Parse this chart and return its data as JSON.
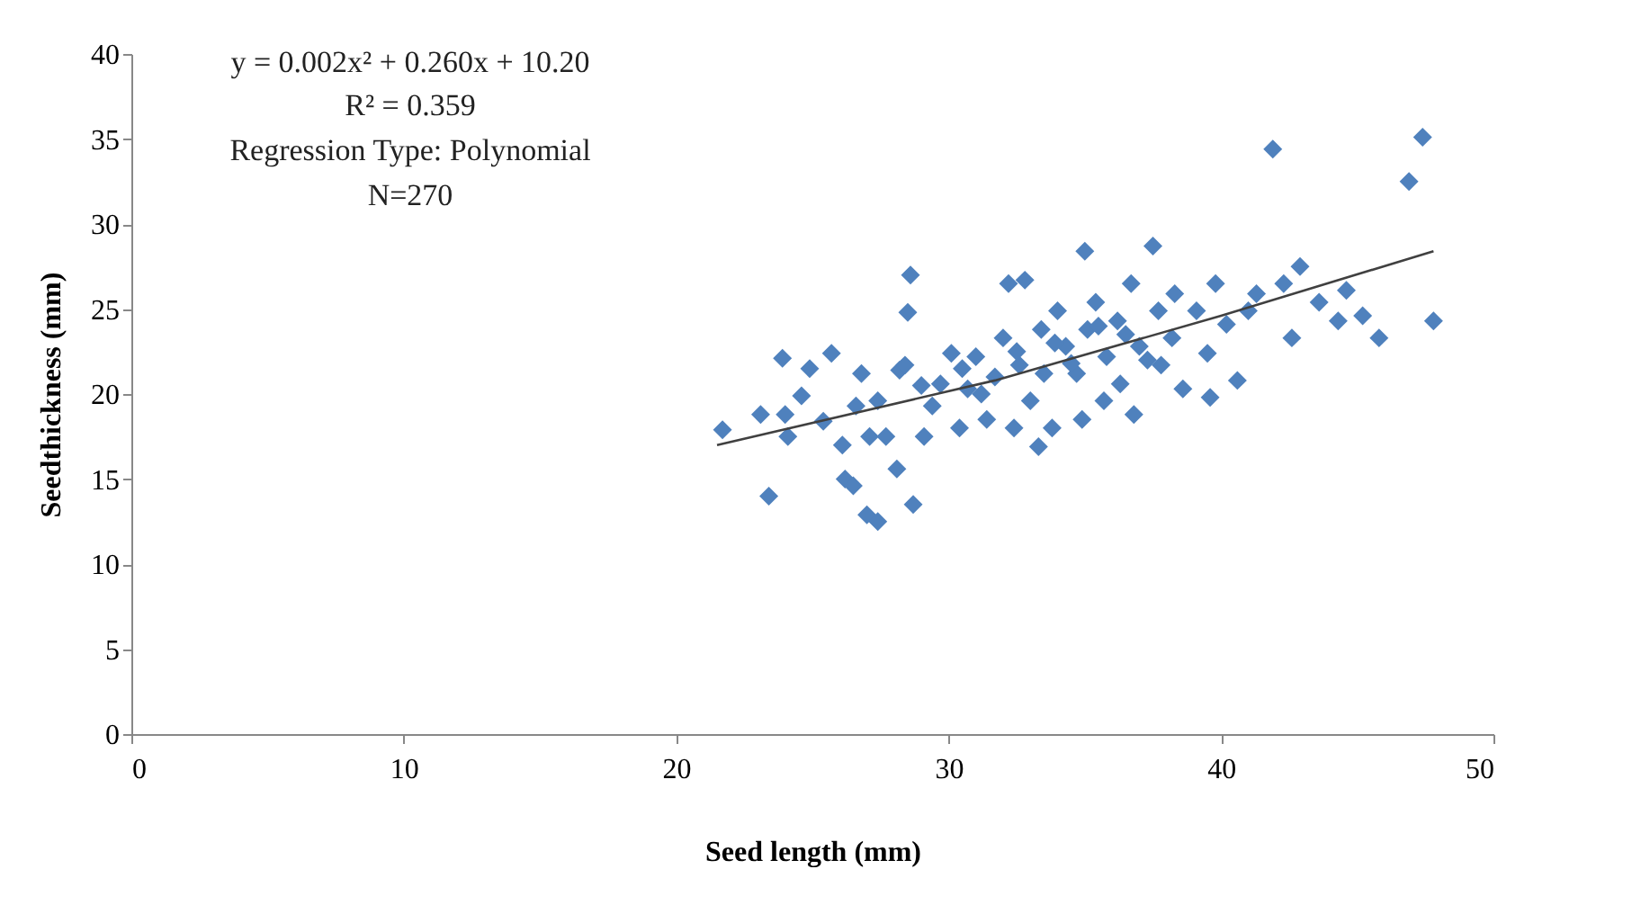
{
  "chart_data": {
    "type": "scatter",
    "xlabel": "Seed length (mm)",
    "ylabel": "Seedthickness (mm)",
    "xlim": [
      0,
      50
    ],
    "xticks": [
      0,
      10,
      20,
      30,
      40,
      50
    ],
    "ylim": [
      0,
      40
    ],
    "yticks": [
      0,
      5,
      10,
      15,
      20,
      25,
      30,
      35,
      40
    ],
    "grid": false,
    "legend": false,
    "annotations": [
      "y = 0.002x² + 0.260x + 10.20",
      "R² = 0.359",
      "Regression Type: Polynomial",
      "N=270"
    ],
    "series": [
      {
        "marker": "diamond",
        "color": "#4f81bd",
        "x": [
          21.7,
          23.1,
          23.4,
          24.0,
          24.1,
          23.9,
          24.6,
          24.9,
          25.7,
          25.4,
          26.1,
          26.2,
          26.5,
          26.8,
          26.6,
          27.1,
          27.0,
          27.4,
          27.4,
          27.7,
          28.1,
          28.2,
          28.6,
          28.5,
          28.7,
          28.4,
          29.1,
          29.4,
          29.7,
          30.1,
          30.4,
          30.7,
          31.0,
          31.4,
          31.7,
          32.0,
          32.2,
          32.4,
          32.6,
          32.8,
          33.0,
          33.3,
          33.4,
          33.5,
          33.8,
          34.0,
          34.3,
          34.7,
          34.9,
          35.0,
          35.1,
          35.4,
          35.7,
          35.8,
          36.2,
          36.3,
          36.7,
          36.8,
          37.0,
          37.5,
          37.7,
          37.8,
          38.2,
          38.3,
          38.6,
          39.1,
          39.5,
          39.6,
          39.8,
          40.2,
          40.6,
          41.0,
          41.3,
          41.9,
          42.3,
          42.6,
          42.9,
          43.6,
          44.3,
          44.6,
          45.2,
          45.8,
          46.9,
          47.4,
          47.8,
          31.2,
          32.5,
          33.9,
          34.5,
          35.5,
          36.5,
          37.3,
          30.5,
          29.0
        ],
        "values": [
          17.9,
          18.8,
          14.0,
          18.8,
          17.5,
          22.1,
          19.9,
          21.5,
          22.4,
          18.4,
          17.0,
          15.0,
          14.6,
          21.2,
          19.3,
          17.5,
          12.9,
          12.5,
          19.6,
          17.5,
          15.6,
          21.4,
          27.0,
          24.8,
          13.5,
          21.7,
          17.5,
          19.3,
          20.6,
          22.4,
          18.0,
          20.3,
          22.2,
          18.5,
          21.0,
          23.3,
          26.5,
          18.0,
          21.7,
          26.7,
          19.6,
          16.9,
          23.8,
          21.2,
          18.0,
          24.9,
          22.8,
          21.2,
          18.5,
          28.4,
          23.8,
          25.4,
          19.6,
          22.2,
          24.3,
          20.6,
          26.5,
          18.8,
          22.8,
          28.7,
          24.9,
          21.7,
          23.3,
          25.9,
          20.3,
          24.9,
          22.4,
          19.8,
          26.5,
          24.1,
          20.8,
          24.9,
          25.9,
          34.4,
          26.5,
          23.3,
          27.5,
          25.4,
          24.3,
          26.1,
          24.6,
          23.3,
          32.5,
          35.1,
          24.3,
          20.0,
          22.5,
          23.0,
          21.8,
          24.0,
          23.5,
          22.0,
          21.5,
          20.5
        ]
      },
      {
        "type": "line",
        "marker": "none",
        "color": "#404040",
        "x": [
          21.5,
          31.7,
          40.0,
          47.8
        ],
        "values": [
          17.0,
          20.8,
          24.6,
          28.4
        ]
      }
    ]
  }
}
